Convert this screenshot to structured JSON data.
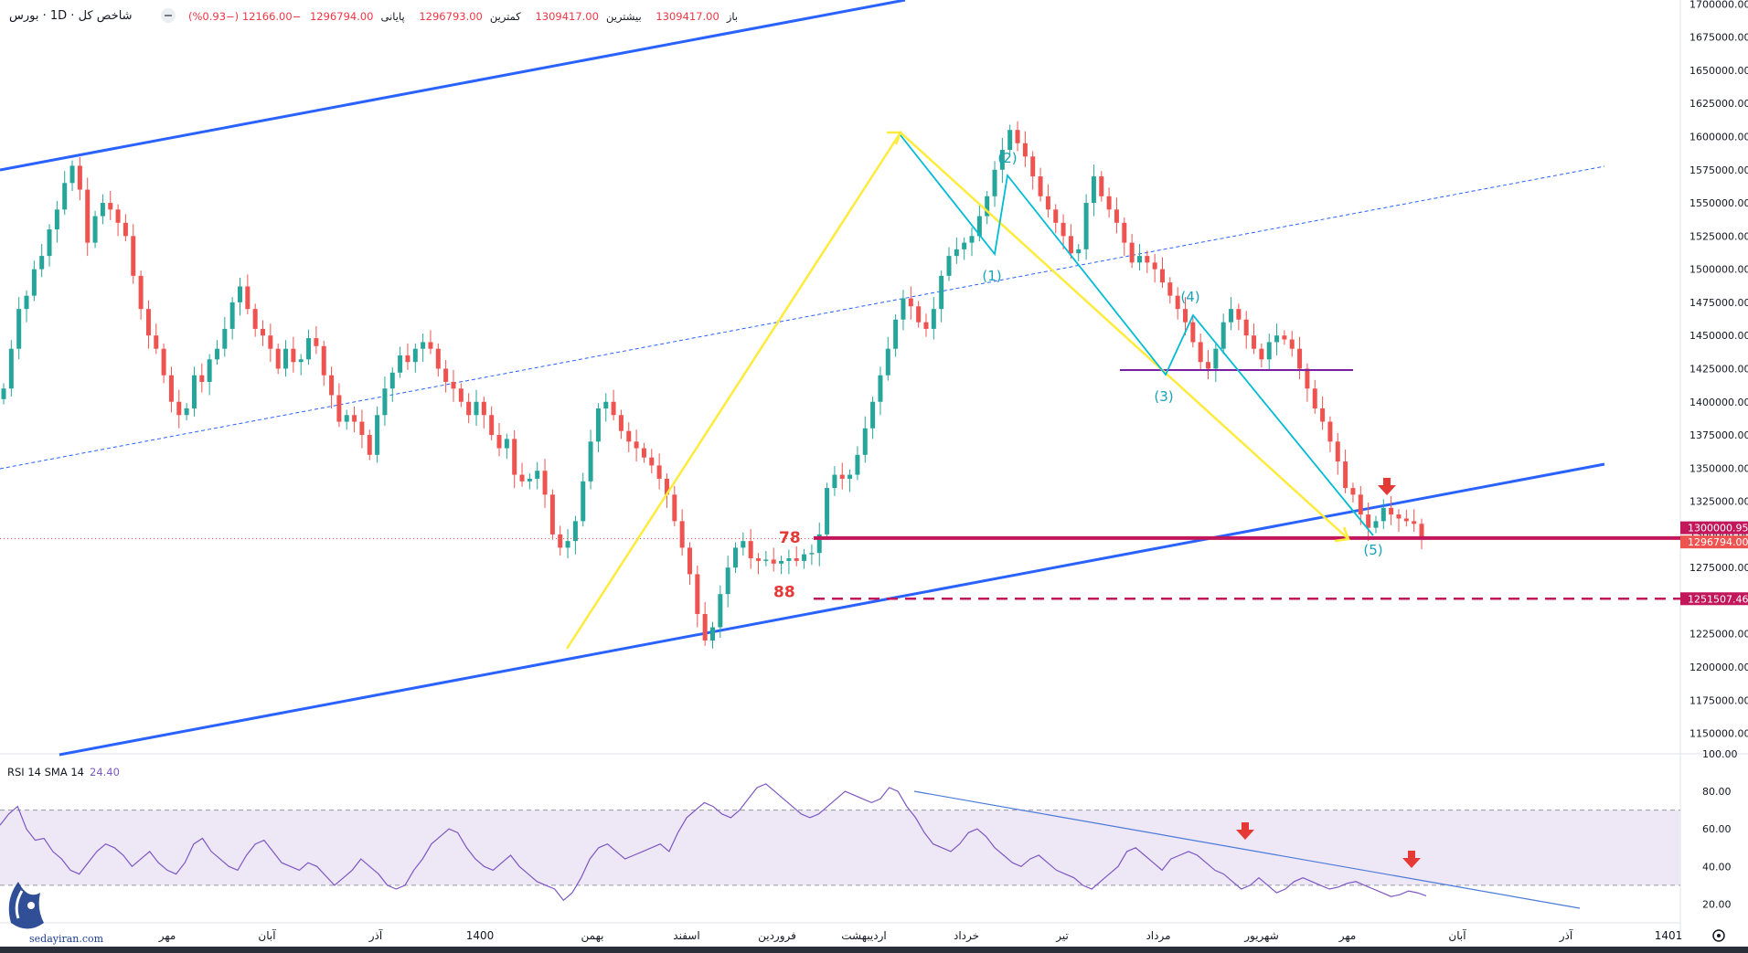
{
  "header": {
    "symbol": "شاخص کل · 1D · بورس",
    "ohlc": {
      "open_label": "باز",
      "open": "1309417.00",
      "high_label": "بیشترین",
      "high": "1309417.00",
      "low_label": "کمترین",
      "low": "1296793.00",
      "close_label": "پایانی",
      "close": "1296794.00",
      "change": "−12166.00 (−0.93%)"
    }
  },
  "rsi_header": {
    "label": "RSI 14 SMA 14",
    "value": "24.40"
  },
  "watermark": {
    "site": "sedayiran.com"
  },
  "colors": {
    "up": "#26a69a",
    "down": "#ef5350",
    "channel": "#2962ff",
    "fib": "#c2185b",
    "fib_label": "#e53935",
    "wave": "#00bcd4",
    "impulse": "#ffeb3b",
    "neckline": "#7b1fa2",
    "rsi": "#7e57c2",
    "rsi_band": "#ede7f6",
    "arrow": "#e53935"
  },
  "chart_data": {
    "type": "candlestick",
    "y_axis": {
      "ticks": [
        "1700000.00",
        "1675000.00",
        "1650000.00",
        "1625000.00",
        "1600000.00",
        "1575000.00",
        "1550000.00",
        "1525000.00",
        "1500000.00",
        "1475000.00",
        "1450000.00",
        "1425000.00",
        "1400000.00",
        "1375000.00",
        "1350000.00",
        "1325000.00",
        "1300000.00",
        "1275000.00",
        "1250000.00",
        "1225000.00",
        "1200000.00",
        "1175000.00",
        "1150000.00"
      ],
      "range": [
        1138000,
        1703000
      ]
    },
    "x_axis": {
      "labels": [
        "مهر",
        "آبان",
        "آذر",
        "1400",
        "بهمن",
        "اسفند",
        "فروردین",
        "اردیبهشت",
        "خرداد",
        "تیر",
        "مرداد",
        "شهریور",
        "مهر",
        "آبان",
        "آذر",
        "1401"
      ]
    },
    "closes": [
      1410000,
      1440000,
      1470000,
      1480000,
      1500000,
      1510000,
      1530000,
      1545000,
      1565000,
      1578000,
      1560000,
      1520000,
      1540000,
      1550000,
      1545000,
      1535000,
      1525000,
      1495000,
      1470000,
      1450000,
      1440000,
      1420000,
      1400000,
      1390000,
      1395000,
      1420000,
      1415000,
      1432000,
      1440000,
      1455000,
      1475000,
      1487000,
      1470000,
      1455000,
      1450000,
      1440000,
      1425000,
      1440000,
      1430000,
      1432000,
      1448000,
      1442000,
      1420000,
      1405000,
      1385000,
      1390000,
      1385000,
      1375000,
      1360000,
      1390000,
      1410000,
      1422000,
      1435000,
      1430000,
      1440000,
      1445000,
      1440000,
      1425000,
      1415000,
      1410000,
      1400000,
      1390000,
      1400000,
      1390000,
      1375000,
      1365000,
      1372000,
      1345000,
      1340000,
      1342000,
      1348000,
      1330000,
      1300000,
      1290000,
      1295000,
      1310000,
      1340000,
      1370000,
      1395000,
      1400000,
      1390000,
      1378000,
      1370000,
      1365000,
      1358000,
      1352000,
      1342000,
      1330000,
      1310000,
      1290000,
      1270000,
      1240000,
      1220000,
      1230000,
      1255000,
      1275000,
      1290000,
      1295000,
      1282000,
      1280000,
      1281000,
      1278000,
      1280000,
      1282000,
      1280000,
      1285000,
      1286000,
      1300000,
      1335000,
      1345000,
      1342000,
      1345000,
      1360000,
      1380000,
      1400000,
      1420000,
      1440000,
      1462000,
      1478000,
      1472000,
      1460000,
      1455000,
      1470000,
      1495000,
      1510000,
      1515000,
      1520000,
      1525000,
      1540000,
      1555000,
      1575000,
      1590000,
      1605000,
      1595000,
      1585000,
      1570000,
      1555000,
      1545000,
      1535000,
      1525000,
      1512000,
      1515000,
      1550000,
      1570000,
      1555000,
      1545000,
      1535000,
      1520000,
      1505000,
      1510000,
      1505000,
      1500000,
      1490000,
      1480000,
      1470000,
      1460000,
      1445000,
      1430000,
      1425000,
      1440000,
      1460000,
      1470000,
      1462000,
      1450000,
      1440000,
      1432000,
      1445000,
      1450000,
      1447000,
      1440000,
      1425000,
      1410000,
      1395000,
      1385000,
      1370000,
      1355000,
      1335000,
      1330000,
      1315000,
      1305000,
      1310000,
      1320000,
      1315000,
      1312000,
      1310000,
      1308000,
      1296794
    ],
    "levels": [
      {
        "label": "78",
        "price": "1300000.95",
        "value": 1300000.95,
        "style": "solid"
      },
      {
        "label": "88",
        "price": "1251507.46",
        "value": 1251507.46,
        "style": "dashed"
      },
      {
        "label": "",
        "price": "1296794.00",
        "value": 1296794.0,
        "style": "last"
      }
    ],
    "waves": [
      "(1)",
      "(2)",
      "(3)",
      "(4)",
      "(5)"
    ],
    "rsi": {
      "ticks": [
        "100.00",
        "80.00",
        "60.00",
        "40.00",
        "20.00"
      ],
      "range": [
        10,
        100
      ],
      "upper_band": 70,
      "lower_band": 30,
      "values": [
        62,
        68,
        72,
        60,
        54,
        55,
        48,
        44,
        38,
        36,
        42,
        48,
        52,
        50,
        46,
        40,
        44,
        48,
        42,
        38,
        36,
        42,
        52,
        55,
        48,
        44,
        40,
        38,
        46,
        52,
        54,
        48,
        42,
        40,
        38,
        42,
        40,
        35,
        30,
        34,
        38,
        44,
        40,
        36,
        30,
        28,
        30,
        38,
        44,
        52,
        56,
        60,
        58,
        50,
        44,
        40,
        38,
        42,
        46,
        40,
        36,
        32,
        30,
        28,
        22,
        26,
        34,
        44,
        50,
        52,
        48,
        44,
        46,
        48,
        50,
        52,
        48,
        58,
        66,
        70,
        74,
        72,
        68,
        66,
        70,
        76,
        82,
        84,
        80,
        76,
        72,
        68,
        66,
        68,
        72,
        76,
        80,
        78,
        76,
        74,
        76,
        82,
        80,
        72,
        66,
        58,
        52,
        50,
        48,
        52,
        58,
        60,
        56,
        50,
        46,
        42,
        40,
        44,
        46,
        42,
        38,
        36,
        34,
        30,
        28,
        32,
        36,
        40,
        48,
        50,
        46,
        42,
        38,
        44,
        46,
        48,
        46,
        42,
        38,
        36,
        32,
        28,
        30,
        34,
        30,
        26,
        28,
        32,
        34,
        32,
        30,
        28,
        29,
        31,
        32,
        30,
        28,
        26,
        24,
        25,
        27,
        26,
        24.4
      ]
    }
  }
}
